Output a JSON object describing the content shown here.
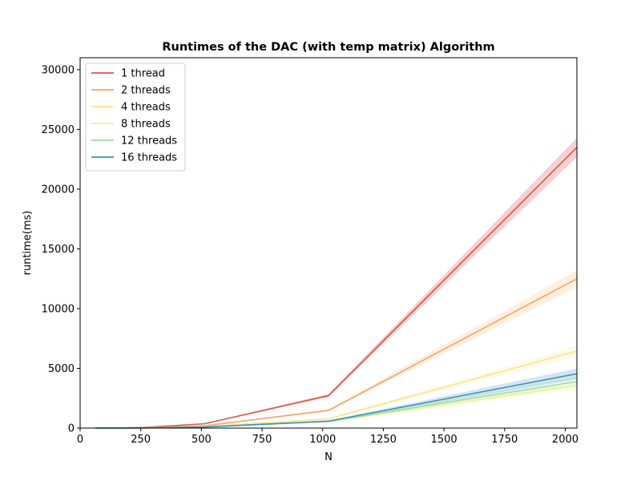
{
  "chart_data": {
    "type": "line",
    "title": "Runtimes of the DAC (with temp matrix) Algorithm",
    "xlabel": "N",
    "ylabel": "runtime(ms)",
    "xlim": [
      0,
      2048
    ],
    "ylim": [
      0,
      31000
    ],
    "xticks": [
      0,
      250,
      500,
      750,
      1000,
      1250,
      1500,
      1750,
      2000
    ],
    "yticks": [
      0,
      5000,
      10000,
      15000,
      20000,
      25000,
      30000
    ],
    "x": [
      64,
      128,
      256,
      512,
      1024,
      2048
    ],
    "legend_position": "upper-left",
    "grid": false,
    "series": [
      {
        "name": "1 thread",
        "color": "#d7191c",
        "line_color": "#e05547",
        "values": [
          2,
          8,
          45,
          360,
          2720,
          23500
        ],
        "band": [
          [
            1,
            3
          ],
          [
            6,
            10
          ],
          [
            40,
            50
          ],
          [
            330,
            390
          ],
          [
            2600,
            2850
          ],
          [
            22700,
            24300
          ]
        ]
      },
      {
        "name": "2 threads",
        "color": "#fdae61",
        "line_color": "#f5a36a",
        "values": [
          1,
          5,
          25,
          190,
          1480,
          12500
        ],
        "band": [
          [
            0,
            2
          ],
          [
            4,
            6
          ],
          [
            22,
            28
          ],
          [
            170,
            210
          ],
          [
            1400,
            1580
          ],
          [
            11800,
            13200
          ]
        ]
      },
      {
        "name": "4 threads",
        "color": "#fee08b",
        "line_color": "#fce38a",
        "values": [
          1,
          4,
          15,
          110,
          780,
          6450
        ],
        "band": [
          [
            0,
            2
          ],
          [
            3,
            5
          ],
          [
            12,
            18
          ],
          [
            95,
            125
          ],
          [
            720,
            850
          ],
          [
            6000,
            6900
          ]
        ]
      },
      {
        "name": "8 threads",
        "color": "#e6f598",
        "line_color": "#e8f59a",
        "values": [
          1,
          3,
          12,
          85,
          540,
          3550
        ],
        "band": [
          [
            0,
            2
          ],
          [
            2,
            4
          ],
          [
            10,
            14
          ],
          [
            75,
            95
          ],
          [
            490,
            600
          ],
          [
            3200,
            3900
          ]
        ]
      },
      {
        "name": "12 threads",
        "color": "#abdda4",
        "line_color": "#a6d9a0",
        "values": [
          1,
          3,
          12,
          85,
          560,
          3900
        ],
        "band": [
          [
            0,
            2
          ],
          [
            2,
            4
          ],
          [
            10,
            14
          ],
          [
            75,
            95
          ],
          [
            500,
            620
          ],
          [
            3500,
            4300
          ]
        ]
      },
      {
        "name": "16 threads",
        "color": "#2b83ba",
        "line_color": "#3a96b3",
        "values": [
          1,
          3,
          12,
          85,
          580,
          4550
        ],
        "band": [
          [
            0,
            2
          ],
          [
            2,
            4
          ],
          [
            10,
            14
          ],
          [
            75,
            95
          ],
          [
            520,
            650
          ],
          [
            4100,
            5000
          ]
        ]
      }
    ]
  }
}
